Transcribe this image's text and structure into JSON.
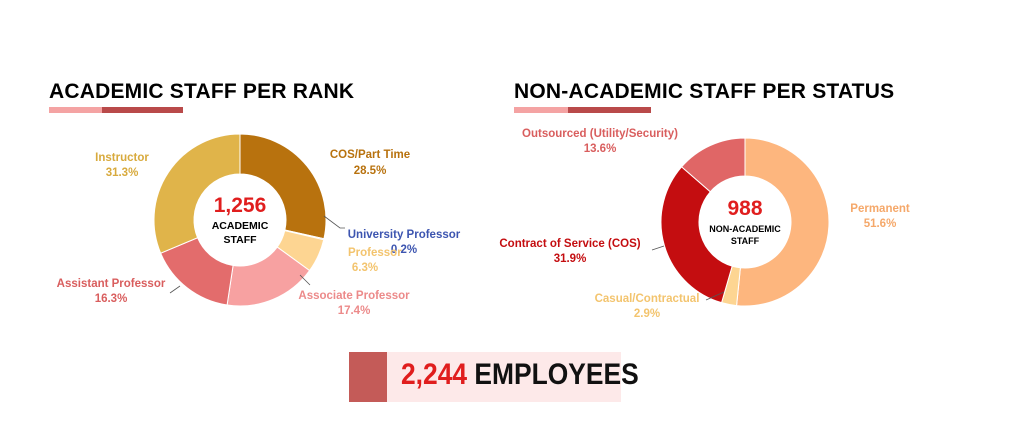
{
  "colors": {
    "accent_light": "#f4a3a3",
    "accent_dark": "#b94a4a",
    "total_bg": "#fde9e9",
    "total_accent": "#c45b58",
    "center_number": "#e01e1e"
  },
  "total": {
    "number": "2,244",
    "word": "EMPLOYEES"
  },
  "chart_data": [
    {
      "type": "donut",
      "title": "ACADEMIC STAFF PER RANK",
      "center": {
        "value": "1,256",
        "label_line1": "ACADEMIC",
        "label_line2": "STAFF"
      },
      "slices": [
        {
          "name": "COS/Part Time",
          "pct_label": "28.5%",
          "value": 28.5,
          "color": "#b8720e",
          "label_color": "#b8720e"
        },
        {
          "name": "University Professor",
          "pct_label": "0.2%",
          "value": 0.2,
          "color": "#3d55b0",
          "label_color": "#3d55b0"
        },
        {
          "name": "Professor",
          "pct_label": "6.3%",
          "value": 6.3,
          "color": "#fdd592",
          "label_color": "#f3c46e"
        },
        {
          "name": "Associate Professor",
          "pct_label": "17.4%",
          "value": 17.4,
          "color": "#f7a1a1",
          "label_color": "#ec8a8a"
        },
        {
          "name": "Assistant Professor",
          "pct_label": "16.3%",
          "value": 16.3,
          "color": "#e36c6c",
          "label_color": "#d95e5e"
        },
        {
          "name": "Instructor",
          "pct_label": "31.3%",
          "value": 31.3,
          "color": "#e0b44a",
          "label_color": "#d8aa3d"
        }
      ]
    },
    {
      "type": "donut",
      "title": "NON-ACADEMIC STAFF PER STATUS",
      "center": {
        "value": "988",
        "label_line1": "NON-ACADEMIC",
        "label_line2": "STAFF"
      },
      "slices": [
        {
          "name": "Permanent",
          "pct_label": "51.6%",
          "value": 51.6,
          "color": "#fdb67e",
          "label_color": "#f5a86a"
        },
        {
          "name": "Casual/Contractual",
          "pct_label": "2.9%",
          "value": 2.9,
          "color": "#fdd592",
          "label_color": "#f3c46e"
        },
        {
          "name": "Contract of Service (COS)",
          "pct_label": "31.9%",
          "value": 31.9,
          "color": "#c40d10",
          "label_color": "#c40d10"
        },
        {
          "name": "Outsourced (Utility/Security)",
          "pct_label": "13.6%",
          "value": 13.6,
          "color": "#e06666",
          "label_color": "#d95e5e"
        }
      ]
    }
  ]
}
